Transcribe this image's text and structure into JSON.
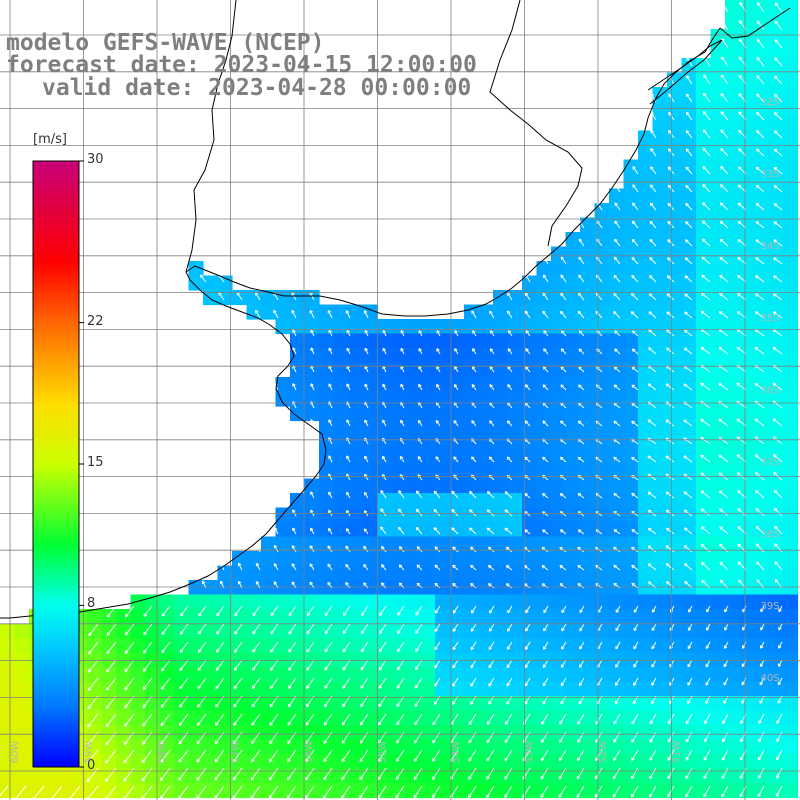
{
  "title": {
    "line1": "modelo GEFS-WAVE (NCEP)",
    "line2": "forecast date: 2023-04-15 12:00:00",
    "line3": "valid date: 2023-04-28 00:00:00"
  },
  "colorbar": {
    "unit": "[m/s]",
    "ticks": [
      "30",
      "22",
      "15",
      "8",
      "0"
    ],
    "tick_values": [
      30,
      22,
      15,
      8,
      0
    ],
    "stops": [
      {
        "value": 0,
        "color": "#0000ff"
      },
      {
        "value": 3,
        "color": "#0078ff"
      },
      {
        "value": 6,
        "color": "#00ccff"
      },
      {
        "value": 8,
        "color": "#00ffee"
      },
      {
        "value": 11,
        "color": "#00ff33"
      },
      {
        "value": 15,
        "color": "#ccff00"
      },
      {
        "value": 18,
        "color": "#ffdd00"
      },
      {
        "value": 22,
        "color": "#ff6600"
      },
      {
        "value": 25,
        "color": "#ff0000"
      },
      {
        "value": 30,
        "color": "#c8007a"
      }
    ]
  },
  "grid": {
    "latitude_labels": [
      "32S",
      "33S",
      "34S",
      "35S",
      "36S",
      "37S",
      "38S",
      "39S",
      "40S"
    ],
    "longitude_labels": [
      "60W",
      "59W",
      "58W",
      "57W",
      "56W",
      "55W",
      "54W",
      "53W",
      "52W",
      "51W"
    ]
  },
  "colors": {
    "land": "#ffffff",
    "coastline": "#000000",
    "grid": "#808080",
    "arrow": "#ffffff",
    "title": "#7f7f7f"
  }
}
